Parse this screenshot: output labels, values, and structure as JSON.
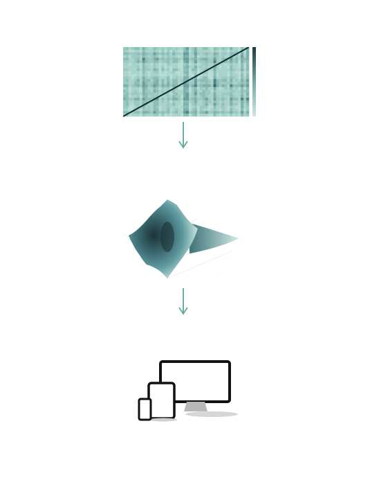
{
  "flow": {
    "steps": [
      {
        "name": "correlation-matrix",
        "icon": "matrix-heatmap-icon"
      },
      {
        "name": "3d-surface",
        "icon": "surface-plot-icon"
      },
      {
        "name": "devices",
        "icon": "multi-device-icon"
      }
    ],
    "caption": ""
  },
  "colors": {
    "teal_light": "#a9d3cb",
    "teal_mid": "#6fa9a6",
    "teal_dark": "#2a4f55",
    "arrow": "#6aaea2",
    "device_frame": "#111111",
    "stand": "#b8b8b8"
  }
}
